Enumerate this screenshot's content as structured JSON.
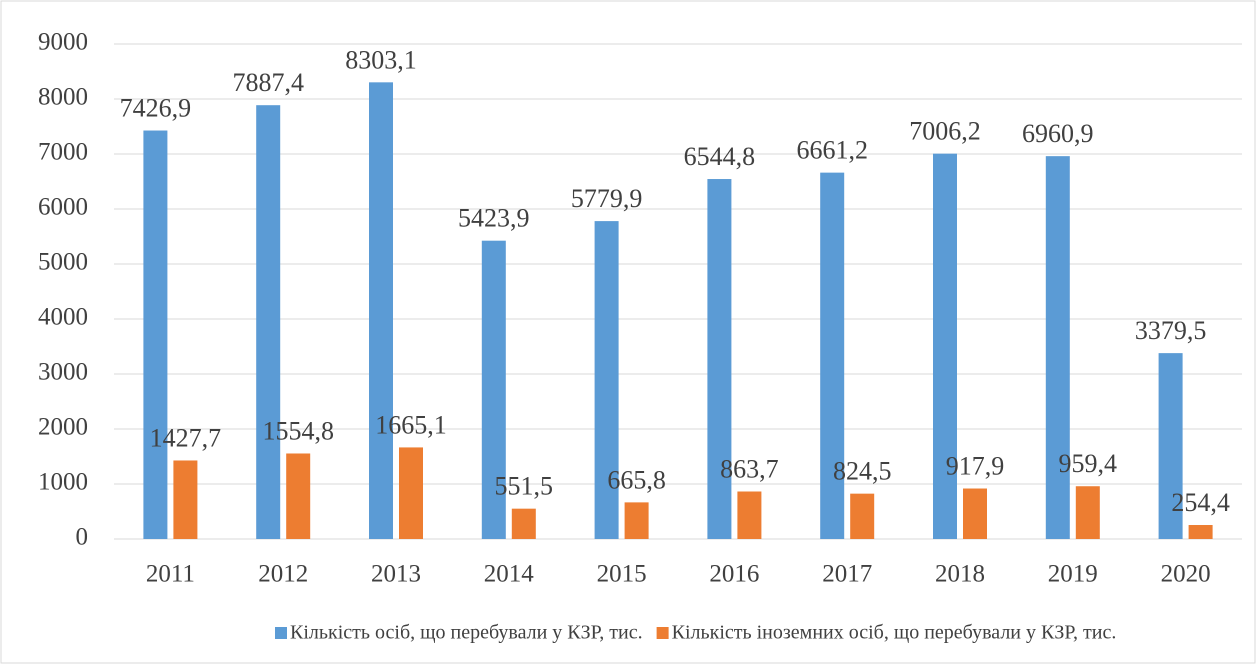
{
  "chart_data": {
    "type": "bar",
    "categories": [
      "2011",
      "2012",
      "2013",
      "2014",
      "2015",
      "2016",
      "2017",
      "2018",
      "2019",
      "2020"
    ],
    "series": [
      {
        "name": "Кількість осіб, що перебували у КЗР, тис.",
        "color": "#5b9bd5",
        "values": [
          7426.9,
          7887.4,
          8303.1,
          5423.9,
          5779.9,
          6544.8,
          6661.2,
          7006.2,
          6960.9,
          3379.5
        ],
        "value_labels": [
          "7426,9",
          "7887,4",
          "8303,1",
          "5423,9",
          "5779,9",
          "6544,8",
          "6661,2",
          "7006,2",
          "6960,9",
          "3379,5"
        ]
      },
      {
        "name": "Кількість іноземних осіб, що перебували у КЗР, тис.",
        "color": "#ed7d31",
        "values": [
          1427.7,
          1554.8,
          1665.1,
          551.5,
          665.8,
          863.7,
          824.5,
          917.9,
          959.4,
          254.4
        ],
        "value_labels": [
          "1427,7",
          "1554,8",
          "1665,1",
          "551,5",
          "665,8",
          "863,7",
          "824,5",
          "917,9",
          "959,4",
          "254,4"
        ]
      }
    ],
    "ylim": [
      0,
      9000
    ],
    "yticks": [
      0,
      1000,
      2000,
      3000,
      4000,
      5000,
      6000,
      7000,
      8000,
      9000
    ],
    "grid": true,
    "legend": "bottom"
  }
}
